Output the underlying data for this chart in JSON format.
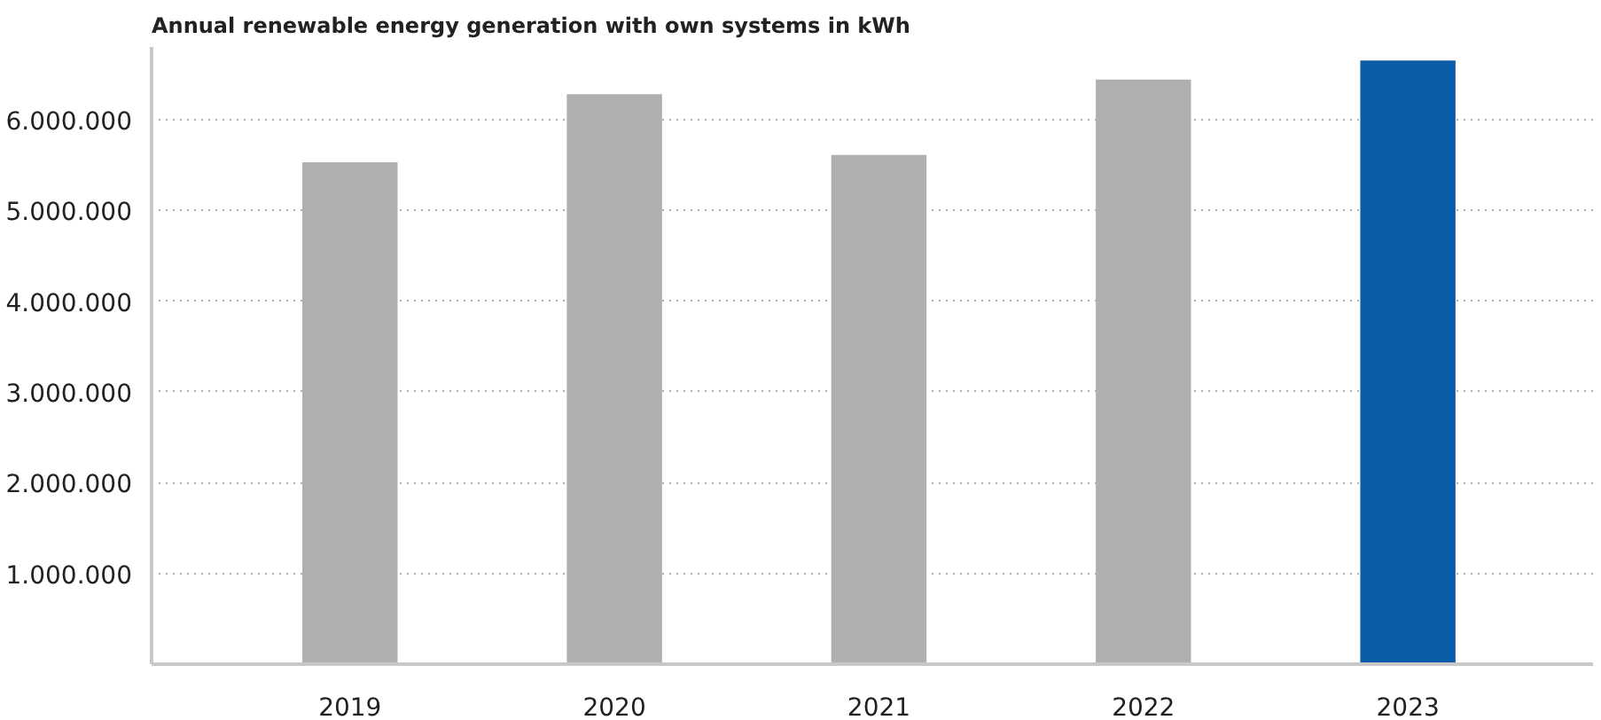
{
  "chart_data": {
    "type": "bar",
    "title": "Annual renewable energy generation with own systems in kWh",
    "categories": [
      "2019",
      "2020",
      "2021",
      "2022",
      "2023"
    ],
    "values": [
      5530000,
      6280000,
      5610000,
      6440000,
      6650000
    ],
    "colors": [
      "#afafaf",
      "#afafaf",
      "#afafaf",
      "#afafaf",
      "#0a5ca8"
    ],
    "ylim": [
      0,
      6800000
    ],
    "yticks": [
      {
        "value": 1000000,
        "label": "1.000.000"
      },
      {
        "value": 2000000,
        "label": "2.000.000"
      },
      {
        "value": 3000000,
        "label": "3.000.000"
      },
      {
        "value": 4000000,
        "label": "4.000.000"
      },
      {
        "value": 5000000,
        "label": "5.000.000"
      },
      {
        "value": 6000000,
        "label": "6.000.000"
      }
    ],
    "grid": "y"
  }
}
